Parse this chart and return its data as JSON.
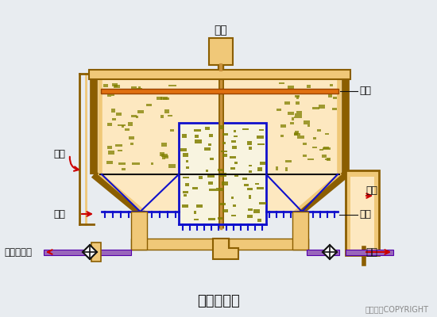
{
  "title": "圆形气浮池",
  "copyright": "东方仿真COPYRIGHT",
  "labels": {
    "motor": "马达",
    "scraper_top": "刮板",
    "clear_liquid": "清液",
    "inlet_mud": "进泥",
    "pressurized_return": "加压回流水",
    "float_mud": "浮泥",
    "scraper_bottom": "刮板",
    "sediment": "沉泥"
  },
  "bg_color": "#e8ecf0",
  "tank_fill": "#f0c878",
  "tank_edge": "#8B5E00",
  "tank_inner": "#fde8c0",
  "blue": "#1010cc",
  "red": "#cc0000",
  "purple": "#9966bb",
  "olive": "#808000",
  "orange": "#e07010",
  "black": "#111111",
  "gray_label": "#555555"
}
